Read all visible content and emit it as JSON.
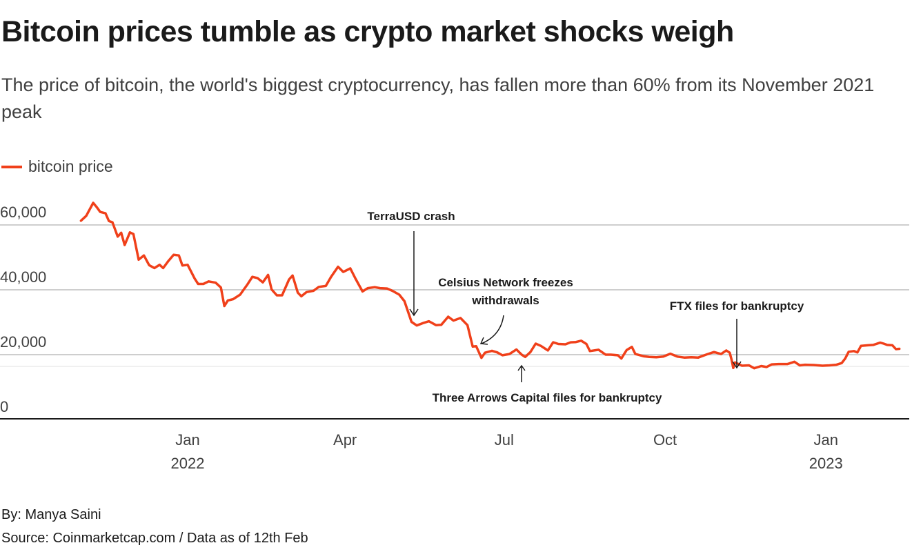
{
  "header": {
    "title": "Bitcoin prices tumble as crypto market shocks weigh",
    "subtitle": "The price of bitcoin, the world's biggest cryptocurrency, has fallen more than 60% from its November 2021 peak"
  },
  "footer": {
    "byline": "By: Manya Saini",
    "source": "Source: Coinmarketcap.com / Data as of 12th Feb"
  },
  "chart_data": {
    "type": "line",
    "title": "Bitcoin prices tumble as crypto market shocks weigh",
    "xlabel": "",
    "ylabel": "",
    "ylim": [
      0,
      65000
    ],
    "xlim": [
      "2021-10-20",
      "2023-02-20"
    ],
    "grid": true,
    "legend": "top-left",
    "colors": {
      "line": "#f0401a",
      "grid": "#bdbdbd",
      "axis": "#1a1a1a"
    },
    "y_ticks": [
      {
        "value": 0,
        "label": "0"
      },
      {
        "value": 20000,
        "label": "20,000"
      },
      {
        "value": 40000,
        "label": "40,000"
      },
      {
        "value": 60000,
        "label": "60,000"
      }
    ],
    "x_ticks": [
      {
        "date": "2022-01-01",
        "label": "Jan",
        "sublabel": "2022"
      },
      {
        "date": "2022-04-01",
        "label": "Apr",
        "sublabel": ""
      },
      {
        "date": "2022-07-01",
        "label": "Jul",
        "sublabel": ""
      },
      {
        "date": "2022-10-01",
        "label": "Oct",
        "sublabel": ""
      },
      {
        "date": "2023-01-01",
        "label": "Jan",
        "sublabel": "2023"
      }
    ],
    "series": [
      {
        "name": "bitcoin price",
        "points": [
          [
            "2021-11-01",
            61300
          ],
          [
            "2021-11-04",
            62800
          ],
          [
            "2021-11-08",
            66800
          ],
          [
            "2021-11-10",
            65500
          ],
          [
            "2021-11-12",
            64000
          ],
          [
            "2021-11-15",
            63600
          ],
          [
            "2021-11-17",
            61200
          ],
          [
            "2021-11-19",
            60800
          ],
          [
            "2021-11-22",
            56400
          ],
          [
            "2021-11-24",
            57600
          ],
          [
            "2021-11-26",
            53800
          ],
          [
            "2021-11-29",
            57700
          ],
          [
            "2021-12-01",
            57200
          ],
          [
            "2021-12-04",
            49300
          ],
          [
            "2021-12-07",
            50600
          ],
          [
            "2021-12-10",
            47600
          ],
          [
            "2021-12-13",
            46700
          ],
          [
            "2021-12-16",
            47700
          ],
          [
            "2021-12-18",
            46700
          ],
          [
            "2021-12-21",
            48900
          ],
          [
            "2021-12-24",
            50800
          ],
          [
            "2021-12-27",
            50600
          ],
          [
            "2021-12-29",
            47500
          ],
          [
            "2022-01-01",
            47700
          ],
          [
            "2022-01-05",
            43500
          ],
          [
            "2022-01-07",
            41800
          ],
          [
            "2022-01-10",
            41800
          ],
          [
            "2022-01-13",
            42600
          ],
          [
            "2022-01-17",
            42200
          ],
          [
            "2022-01-20",
            40700
          ],
          [
            "2022-01-22",
            35000
          ],
          [
            "2022-01-24",
            36700
          ],
          [
            "2022-01-27",
            37100
          ],
          [
            "2022-01-31",
            38500
          ],
          [
            "2022-02-04",
            41500
          ],
          [
            "2022-02-07",
            44000
          ],
          [
            "2022-02-10",
            43600
          ],
          [
            "2022-02-13",
            42300
          ],
          [
            "2022-02-16",
            44600
          ],
          [
            "2022-02-18",
            40100
          ],
          [
            "2022-02-21",
            38300
          ],
          [
            "2022-02-24",
            38300
          ],
          [
            "2022-02-28",
            43200
          ],
          [
            "2022-03-02",
            44400
          ],
          [
            "2022-03-05",
            39100
          ],
          [
            "2022-03-07",
            38000
          ],
          [
            "2022-03-10",
            39300
          ],
          [
            "2022-03-14",
            39700
          ],
          [
            "2022-03-17",
            40900
          ],
          [
            "2022-03-21",
            41200
          ],
          [
            "2022-03-24",
            44000
          ],
          [
            "2022-03-28",
            47100
          ],
          [
            "2022-03-31",
            45500
          ],
          [
            "2022-04-04",
            46600
          ],
          [
            "2022-04-07",
            43400
          ],
          [
            "2022-04-11",
            39500
          ],
          [
            "2022-04-14",
            40500
          ],
          [
            "2022-04-18",
            40800
          ],
          [
            "2022-04-21",
            40500
          ],
          [
            "2022-04-25",
            40400
          ],
          [
            "2022-04-28",
            39700
          ],
          [
            "2022-05-02",
            38500
          ],
          [
            "2022-05-05",
            36500
          ],
          [
            "2022-05-09",
            30100
          ],
          [
            "2022-05-12",
            29000
          ],
          [
            "2022-05-16",
            29800
          ],
          [
            "2022-05-19",
            30300
          ],
          [
            "2022-05-23",
            29100
          ],
          [
            "2022-05-26",
            29200
          ],
          [
            "2022-05-30",
            31700
          ],
          [
            "2022-06-02",
            30500
          ],
          [
            "2022-06-06",
            31300
          ],
          [
            "2022-06-10",
            29100
          ],
          [
            "2022-06-13",
            22500
          ],
          [
            "2022-06-15",
            22600
          ],
          [
            "2022-06-18",
            19000
          ],
          [
            "2022-06-20",
            20600
          ],
          [
            "2022-06-24",
            21200
          ],
          [
            "2022-06-27",
            20700
          ],
          [
            "2022-06-30",
            19800
          ],
          [
            "2022-07-04",
            20200
          ],
          [
            "2022-07-08",
            21600
          ],
          [
            "2022-07-11",
            20000
          ],
          [
            "2022-07-13",
            19300
          ],
          [
            "2022-07-16",
            20800
          ],
          [
            "2022-07-19",
            23400
          ],
          [
            "2022-07-22",
            22700
          ],
          [
            "2022-07-26",
            21300
          ],
          [
            "2022-07-29",
            23800
          ],
          [
            "2022-08-01",
            23300
          ],
          [
            "2022-08-05",
            23200
          ],
          [
            "2022-08-08",
            23800
          ],
          [
            "2022-08-11",
            23900
          ],
          [
            "2022-08-14",
            24300
          ],
          [
            "2022-08-17",
            23300
          ],
          [
            "2022-08-19",
            21100
          ],
          [
            "2022-08-24",
            21500
          ],
          [
            "2022-08-28",
            20000
          ],
          [
            "2022-08-31",
            20000
          ],
          [
            "2022-09-04",
            19800
          ],
          [
            "2022-09-06",
            18800
          ],
          [
            "2022-09-09",
            21400
          ],
          [
            "2022-09-12",
            22400
          ],
          [
            "2022-09-14",
            20200
          ],
          [
            "2022-09-19",
            19500
          ],
          [
            "2022-09-22",
            19300
          ],
          [
            "2022-09-26",
            19200
          ],
          [
            "2022-09-30",
            19400
          ],
          [
            "2022-10-04",
            20300
          ],
          [
            "2022-10-08",
            19400
          ],
          [
            "2022-10-12",
            19100
          ],
          [
            "2022-10-16",
            19200
          ],
          [
            "2022-10-20",
            19100
          ],
          [
            "2022-10-25",
            20100
          ],
          [
            "2022-10-29",
            20800
          ],
          [
            "2022-11-02",
            20200
          ],
          [
            "2022-11-05",
            21300
          ],
          [
            "2022-11-07",
            20600
          ],
          [
            "2022-11-08",
            18500
          ],
          [
            "2022-11-09",
            15900
          ],
          [
            "2022-11-10",
            17600
          ],
          [
            "2022-11-14",
            16600
          ],
          [
            "2022-11-18",
            16700
          ],
          [
            "2022-11-21",
            15800
          ],
          [
            "2022-11-25",
            16500
          ],
          [
            "2022-11-28",
            16200
          ],
          [
            "2022-12-01",
            17000
          ],
          [
            "2022-12-05",
            17100
          ],
          [
            "2022-12-10",
            17100
          ],
          [
            "2022-12-14",
            17800
          ],
          [
            "2022-12-17",
            16700
          ],
          [
            "2022-12-20",
            16900
          ],
          [
            "2022-12-25",
            16800
          ],
          [
            "2022-12-30",
            16600
          ],
          [
            "2023-01-03",
            16700
          ],
          [
            "2023-01-07",
            16900
          ],
          [
            "2023-01-10",
            17400
          ],
          [
            "2023-01-12",
            18800
          ],
          [
            "2023-01-14",
            20900
          ],
          [
            "2023-01-17",
            21100
          ],
          [
            "2023-01-19",
            20700
          ],
          [
            "2023-01-21",
            22700
          ],
          [
            "2023-01-25",
            22900
          ],
          [
            "2023-01-28",
            23000
          ],
          [
            "2023-02-01",
            23700
          ],
          [
            "2023-02-03",
            23400
          ],
          [
            "2023-02-05",
            23000
          ],
          [
            "2023-02-08",
            22900
          ],
          [
            "2023-02-10",
            21700
          ],
          [
            "2023-02-12",
            21800
          ]
        ]
      }
    ],
    "annotations": [
      {
        "label": "TerraUSD crash",
        "date": "2022-05-09"
      },
      {
        "label": "Celsius Network freezes withdrawals",
        "lines": [
          "Celsius Network freezes",
          "withdrawals"
        ],
        "date": "2022-06-13"
      },
      {
        "label": "Three Arrows Capital files for bankruptcy",
        "date": "2022-07-11"
      },
      {
        "label": "FTX files for bankruptcy",
        "date": "2022-11-11"
      }
    ]
  }
}
